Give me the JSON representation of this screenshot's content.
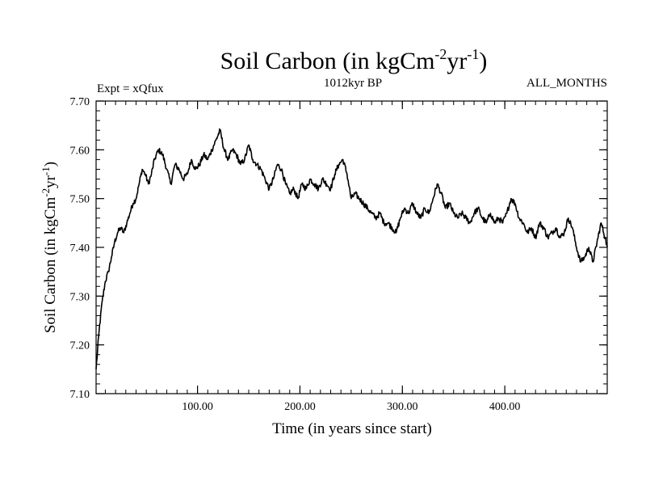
{
  "chart_data": {
    "type": "line",
    "title_parts": {
      "main": "Soil Carbon (in kgCm",
      "exp1": "-2",
      "mid": "yr",
      "exp2": "-1",
      "end": ")"
    },
    "expt_label": "Expt = xQfux",
    "period_label": "1012kyr BP",
    "months_label": "ALL_MONTHS",
    "xlabel": "Time (in years since start)",
    "ylabel_parts": {
      "main": "Soil Carbon (in kgCm",
      "exp1": "-2",
      "mid": "yr",
      "exp2": "-1",
      "end": ")"
    },
    "xlim": [
      1,
      500
    ],
    "ylim": [
      7.1,
      7.7
    ],
    "x_major_ticks": [
      100,
      200,
      300,
      400
    ],
    "x_tick_labels": [
      "100.00",
      "200.00",
      "300.00",
      "400.00"
    ],
    "x_minor_step": 10,
    "y_major_ticks": [
      7.1,
      7.2,
      7.3,
      7.4,
      7.5,
      7.6,
      7.7
    ],
    "y_tick_labels": [
      "7.10",
      "7.20",
      "7.30",
      "7.40",
      "7.50",
      "7.60",
      "7.70"
    ],
    "y_minor_step": 0.02,
    "series": [
      {
        "name": "Soil Carbon",
        "color": "#000000",
        "x": [
          1,
          4,
          7,
          10,
          13,
          16,
          19,
          22,
          25,
          28,
          31,
          34,
          37,
          40,
          43,
          46,
          49,
          52,
          55,
          58,
          62,
          66,
          70,
          74,
          78,
          82,
          86,
          90,
          94,
          98,
          102,
          106,
          110,
          114,
          118,
          122,
          126,
          130,
          134,
          138,
          142,
          146,
          150,
          154,
          158,
          162,
          166,
          170,
          174,
          178,
          182,
          186,
          190,
          194,
          198,
          202,
          206,
          210,
          214,
          218,
          222,
          226,
          230,
          234,
          238,
          242,
          246,
          250,
          254,
          258,
          262,
          266,
          270,
          274,
          278,
          282,
          286,
          290,
          294,
          298,
          302,
          306,
          310,
          314,
          318,
          322,
          326,
          330,
          334,
          338,
          342,
          346,
          350,
          354,
          358,
          362,
          366,
          370,
          374,
          378,
          382,
          386,
          390,
          394,
          398,
          402,
          406,
          410,
          414,
          418,
          422,
          426,
          430,
          434,
          438,
          442,
          446,
          450,
          454,
          458,
          462,
          466,
          470,
          474,
          478,
          482,
          486,
          490,
          494,
          498,
          500
        ],
        "values": [
          7.15,
          7.23,
          7.29,
          7.33,
          7.35,
          7.38,
          7.41,
          7.43,
          7.44,
          7.43,
          7.45,
          7.47,
          7.49,
          7.5,
          7.53,
          7.56,
          7.55,
          7.53,
          7.55,
          7.58,
          7.6,
          7.59,
          7.56,
          7.53,
          7.57,
          7.56,
          7.54,
          7.55,
          7.58,
          7.56,
          7.57,
          7.59,
          7.58,
          7.6,
          7.62,
          7.64,
          7.6,
          7.58,
          7.6,
          7.59,
          7.57,
          7.58,
          7.61,
          7.58,
          7.57,
          7.56,
          7.54,
          7.52,
          7.54,
          7.57,
          7.56,
          7.53,
          7.51,
          7.52,
          7.5,
          7.53,
          7.52,
          7.54,
          7.53,
          7.52,
          7.54,
          7.53,
          7.52,
          7.55,
          7.57,
          7.58,
          7.55,
          7.5,
          7.51,
          7.5,
          7.49,
          7.48,
          7.47,
          7.46,
          7.47,
          7.45,
          7.45,
          7.44,
          7.43,
          7.46,
          7.48,
          7.47,
          7.49,
          7.47,
          7.46,
          7.48,
          7.47,
          7.5,
          7.53,
          7.51,
          7.48,
          7.49,
          7.47,
          7.46,
          7.47,
          7.46,
          7.45,
          7.47,
          7.48,
          7.46,
          7.45,
          7.47,
          7.45,
          7.46,
          7.45,
          7.47,
          7.5,
          7.49,
          7.46,
          7.45,
          7.43,
          7.44,
          7.42,
          7.45,
          7.44,
          7.42,
          7.43,
          7.44,
          7.42,
          7.43,
          7.46,
          7.44,
          7.4,
          7.37,
          7.38,
          7.4,
          7.37,
          7.41,
          7.45,
          7.42,
          7.4
        ]
      }
    ]
  }
}
